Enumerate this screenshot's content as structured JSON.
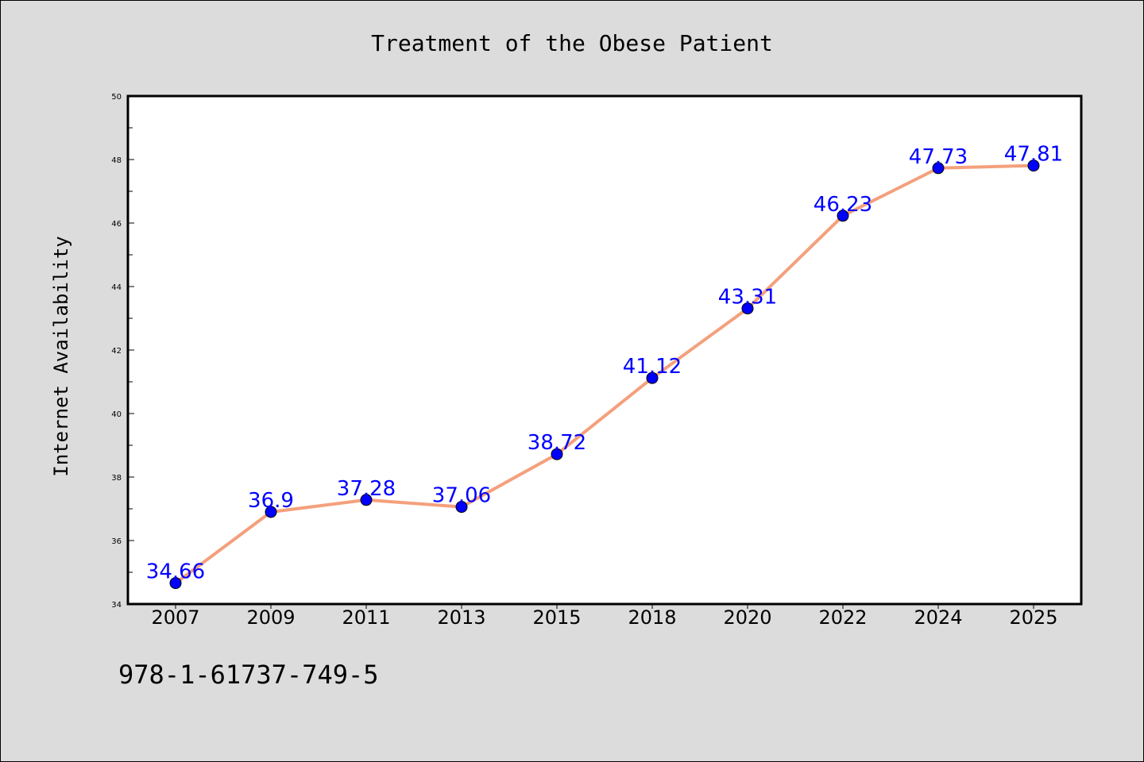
{
  "chart_data": {
    "type": "line",
    "title": "Treatment of the Obese Patient",
    "xlabel": "",
    "ylabel": "Internet Availability",
    "categories": [
      "2007",
      "2009",
      "2011",
      "2013",
      "2015",
      "2018",
      "2020",
      "2022",
      "2024",
      "2025"
    ],
    "values": [
      34.66,
      36.9,
      37.28,
      37.06,
      38.72,
      41.12,
      43.31,
      46.23,
      47.73,
      47.81
    ],
    "data_labels": [
      "34.66",
      "36.9",
      "37.28",
      "37.06",
      "38.72",
      "41.12",
      "43.31",
      "46.23",
      "47.73",
      "47.81"
    ],
    "ylim": [
      34,
      50
    ],
    "yticks": [
      "34",
      "36",
      "38",
      "40",
      "42",
      "44",
      "46",
      "48",
      "50"
    ],
    "grid": false,
    "legend": "none",
    "colors": {
      "line": "#f4a07c",
      "marker": "#0000ff",
      "label": "#0000ff",
      "background": "#dcdcdc",
      "plot_area": "#ffffff"
    }
  },
  "footer": {
    "code": "978-1-61737-749-5"
  }
}
